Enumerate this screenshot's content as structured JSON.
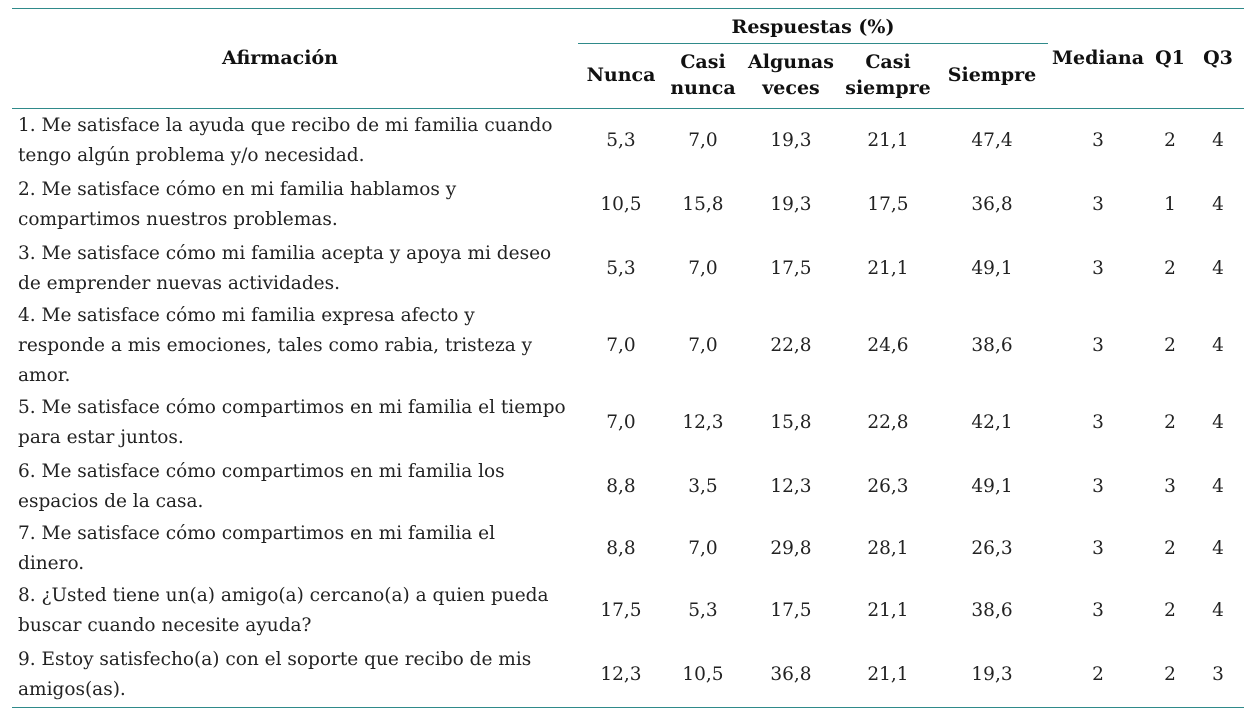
{
  "table": {
    "header": {
      "statement": "Afirmación",
      "responses_group": "Respuestas (%)",
      "response_columns": [
        "Nunca",
        "Casi nunca",
        "Algunas veces",
        "Casi siempre",
        "Siempre"
      ],
      "median": "Mediana",
      "q1": "Q1",
      "q3": "Q3"
    },
    "rows": [
      {
        "statement": "1. Me satisface la ayuda que recibo de mi familia cuando tengo algún problema y/o necesidad.",
        "values": [
          "5,3",
          "7,0",
          "19,3",
          "21,1",
          "47,4"
        ],
        "median": "3",
        "q1": "2",
        "q3": "4"
      },
      {
        "statement": "2. Me satisface cómo en mi familia hablamos y compartimos nuestros problemas.",
        "values": [
          "10,5",
          "15,8",
          "19,3",
          "17,5",
          "36,8"
        ],
        "median": "3",
        "q1": "1",
        "q3": "4"
      },
      {
        "statement": "3. Me satisface cómo mi familia acepta y apoya mi deseo de emprender nuevas actividades.",
        "values": [
          "5,3",
          "7,0",
          "17,5",
          "21,1",
          "49,1"
        ],
        "median": "3",
        "q1": "2",
        "q3": "4"
      },
      {
        "statement": "4. Me satisface cómo mi familia expresa afecto y responde a mis emociones, tales como rabia, tristeza y amor.",
        "values": [
          "7,0",
          "7,0",
          "22,8",
          "24,6",
          "38,6"
        ],
        "median": "3",
        "q1": "2",
        "q3": "4"
      },
      {
        "statement": "5. Me satisface cómo compartimos en mi familia el tiempo para estar juntos.",
        "values": [
          "7,0",
          "12,3",
          "15,8",
          "22,8",
          "42,1"
        ],
        "median": "3",
        "q1": "2",
        "q3": "4"
      },
      {
        "statement": "6. Me satisface cómo compartimos en mi familia los espacios de la casa.",
        "values": [
          "8,8",
          "3,5",
          "12,3",
          "26,3",
          "49,1"
        ],
        "median": "3",
        "q1": "3",
        "q3": "4"
      },
      {
        "statement": "7. Me satisface cómo compartimos en mi familia el dinero.",
        "values": [
          "8,8",
          "7,0",
          "29,8",
          "28,1",
          "26,3"
        ],
        "median": "3",
        "q1": "2",
        "q3": "4"
      },
      {
        "statement": "8. ¿Usted tiene un(a) amigo(a) cercano(a) a quien pueda buscar cuando necesite ayuda?",
        "values": [
          "17,5",
          "5,3",
          "17,5",
          "21,1",
          "38,6"
        ],
        "median": "3",
        "q1": "2",
        "q3": "4"
      },
      {
        "statement": "9. Estoy satisfecho(a) con el soporte que recibo de mis amigos(as).",
        "values": [
          "12,3",
          "10,5",
          "36,8",
          "21,1",
          "19,3"
        ],
        "median": "2",
        "q1": "2",
        "q3": "3"
      }
    ],
    "colors": {
      "rule": "#2f8a8a",
      "text": "#222222"
    }
  }
}
